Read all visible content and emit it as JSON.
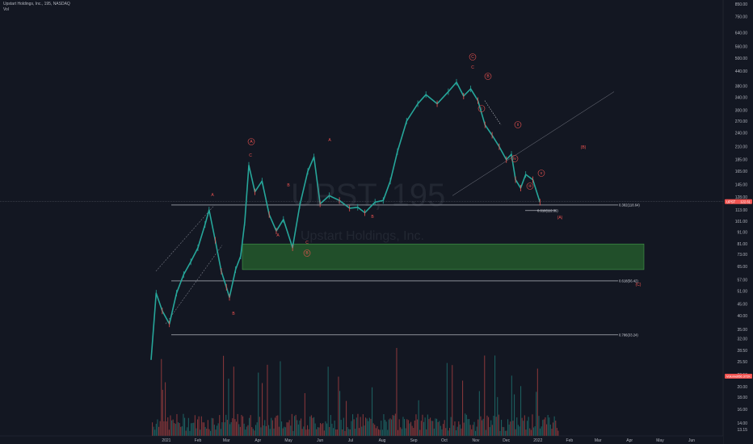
{
  "header": {
    "symbol_line": "Upstart Holdings, Inc., 195, NASDAQ",
    "indicator": "Vol"
  },
  "watermark": {
    "ticker": "UPST, 195",
    "name": "Upstart Holdings, Inc."
  },
  "chart_data": {
    "type": "candlestick",
    "ylim": [
      13.15,
      850
    ],
    "price_ticks": [
      "850.00",
      "750.00",
      "640.00",
      "560.00",
      "500.00",
      "440.00",
      "380.00",
      "340.00",
      "300.00",
      "270.00",
      "240.00",
      "210.00",
      "185.00",
      "165.00",
      "145.00",
      "128.00",
      "113.00",
      "101.00",
      "91.00",
      "81.00",
      "73.00",
      "65.00",
      "57.00",
      "51.00",
      "45.00",
      "40.00",
      "35.00",
      "32.00",
      "28.50",
      "25.50",
      "22.50",
      "20.00",
      "18.00",
      "16.00",
      "14.00",
      "13.15"
    ],
    "time_ticks": [
      "2021",
      "Feb",
      "Mar",
      "Apr",
      "May",
      "Jun",
      "Jul",
      "Aug",
      "Sep",
      "Oct",
      "Nov",
      "Dec",
      "2022",
      "Feb",
      "Mar",
      "Apr",
      "May",
      "Jun"
    ],
    "current_price": {
      "label": "UPST",
      "value": "122.61"
    },
    "volume_badge": {
      "label": "Volume",
      "value": "956.372K"
    },
    "fib_levels": [
      {
        "label": "0.382(118.64)",
        "price": 118.64
      },
      {
        "label": "0.618(112.39)",
        "price": 112.39
      },
      {
        "label": "0.618(56.42)",
        "price": 56.42
      },
      {
        "label": "0.786(33.24)",
        "price": 33.24
      }
    ],
    "support_zone": {
      "low": 63,
      "high": 81
    },
    "wave_labels": [
      "A",
      "B",
      "C",
      "A",
      "B",
      "A",
      "B",
      "C",
      "A",
      "B",
      "C",
      "C",
      "B",
      "i",
      "ii",
      "iii",
      "iv",
      "v",
      "(A)",
      "(B)",
      "(C)"
    ],
    "price_path": [
      [
        "2020-12-17",
        26
      ],
      [
        "2020-12-22",
        50
      ],
      [
        "2020-12-28",
        42
      ],
      [
        "2021-01-04",
        37
      ],
      [
        "2021-01-11",
        50
      ],
      [
        "2021-01-18",
        60
      ],
      [
        "2021-01-25",
        68
      ],
      [
        "2021-02-01",
        78
      ],
      [
        "2021-02-08",
        98
      ],
      [
        "2021-02-12",
        113
      ],
      [
        "2021-02-18",
        84
      ],
      [
        "2021-02-24",
        62
      ],
      [
        "2021-03-01",
        53
      ],
      [
        "2021-03-04",
        48
      ],
      [
        "2021-03-10",
        63
      ],
      [
        "2021-03-15",
        72
      ],
      [
        "2021-03-19",
        100
      ],
      [
        "2021-03-23",
        175
      ],
      [
        "2021-03-29",
        135
      ],
      [
        "2021-04-05",
        150
      ],
      [
        "2021-04-12",
        108
      ],
      [
        "2021-04-19",
        92
      ],
      [
        "2021-04-26",
        103
      ],
      [
        "2021-05-05",
        78
      ],
      [
        "2021-05-12",
        118
      ],
      [
        "2021-05-20",
        165
      ],
      [
        "2021-05-26",
        190
      ],
      [
        "2021-06-01",
        120
      ],
      [
        "2021-06-10",
        130
      ],
      [
        "2021-06-20",
        124
      ],
      [
        "2021-06-30",
        115
      ],
      [
        "2021-07-08",
        116
      ],
      [
        "2021-07-15",
        110
      ],
      [
        "2021-07-25",
        122
      ],
      [
        "2021-08-02",
        124
      ],
      [
        "2021-08-09",
        150
      ],
      [
        "2021-08-16",
        200
      ],
      [
        "2021-08-25",
        270
      ],
      [
        "2021-09-05",
        320
      ],
      [
        "2021-09-13",
        350
      ],
      [
        "2021-09-24",
        320
      ],
      [
        "2021-10-05",
        360
      ],
      [
        "2021-10-13",
        395
      ],
      [
        "2021-10-20",
        345
      ],
      [
        "2021-10-27",
        370
      ],
      [
        "2021-11-03",
        330
      ],
      [
        "2021-11-10",
        260
      ],
      [
        "2021-11-17",
        235
      ],
      [
        "2021-11-24",
        210
      ],
      [
        "2021-12-01",
        185
      ],
      [
        "2021-12-06",
        195
      ],
      [
        "2021-12-10",
        152
      ],
      [
        "2021-12-15",
        140
      ],
      [
        "2021-12-20",
        160
      ],
      [
        "2021-12-27",
        152
      ],
      [
        "2022-01-03",
        122
      ]
    ]
  }
}
